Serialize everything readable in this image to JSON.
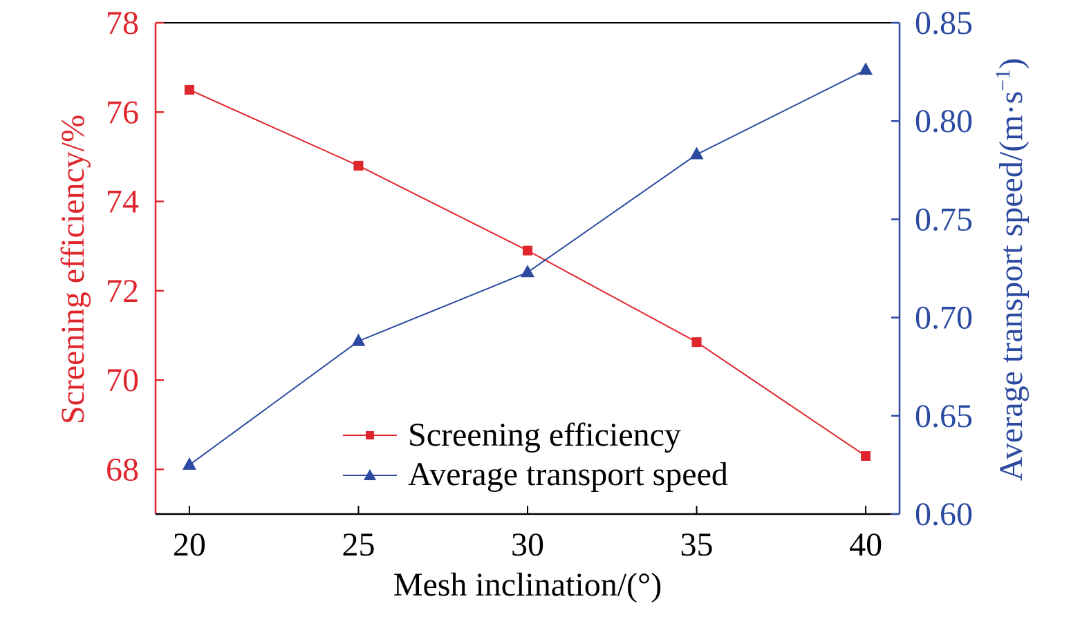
{
  "chart_data": {
    "type": "line",
    "x": [
      20,
      25,
      30,
      35,
      40
    ],
    "xlabel": "Mesh inclination/(°)",
    "xlim": [
      19,
      41
    ],
    "xticks": [
      20,
      25,
      30,
      35,
      40
    ],
    "series": [
      {
        "name": "Screening efficiency",
        "axis": "left",
        "marker": "square",
        "color": "#e0262d",
        "values": [
          76.5,
          74.8,
          72.9,
          70.85,
          68.3
        ]
      },
      {
        "name": "Average transport speed",
        "axis": "right",
        "marker": "triangle",
        "color": "#2b4aa0",
        "values": [
          0.625,
          0.688,
          0.723,
          0.783,
          0.826
        ]
      }
    ],
    "left_axis": {
      "label": "Screening efficiency/%",
      "ylim": [
        67,
        78
      ],
      "ticks": [
        "68",
        "70",
        "72",
        "74",
        "76",
        "78"
      ],
      "color": "#e0262d"
    },
    "right_axis": {
      "label_main": "Average transport speed/(m·s",
      "label_sup": "−1",
      "label_close": ")",
      "ylim": [
        0.6,
        0.85
      ],
      "ticks": [
        "0.60",
        "0.65",
        "0.70",
        "0.75",
        "0.80",
        "0.85"
      ],
      "color": "#2b4aa0"
    },
    "grid": false,
    "legend_position": "lower-center"
  }
}
